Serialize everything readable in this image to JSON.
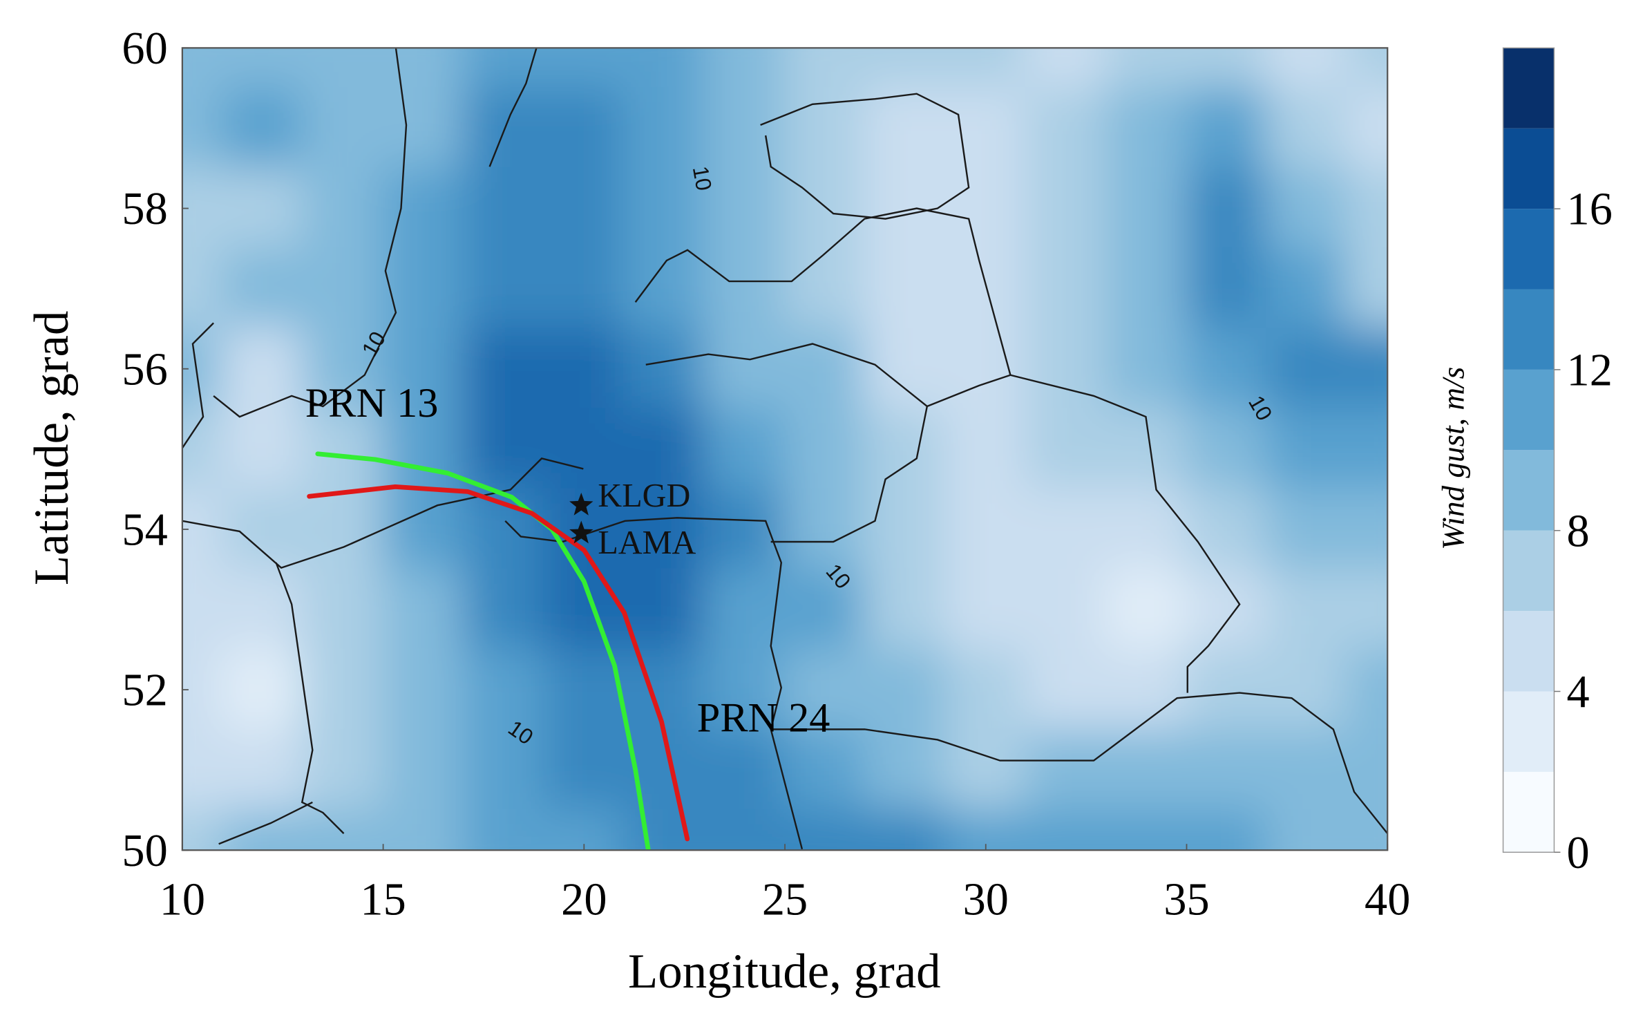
{
  "chart_data": {
    "type": "contour",
    "xlabel": "Longitude, grad",
    "ylabel": "Latitude, grad",
    "xlim": [
      10,
      40
    ],
    "ylim": [
      50,
      60
    ],
    "xticks": [
      10,
      15,
      20,
      25,
      30,
      35,
      40
    ],
    "yticks": [
      50,
      52,
      54,
      56,
      58,
      60
    ],
    "field": {
      "x": [
        10,
        12,
        14,
        16,
        18,
        20,
        22,
        24,
        26,
        28,
        30,
        32,
        34,
        36,
        38,
        40
      ],
      "y": [
        60,
        59,
        58,
        57,
        56,
        55,
        54,
        53,
        52,
        51,
        50
      ],
      "values": [
        [
          8,
          8,
          9,
          8,
          11,
          11,
          11,
          9,
          6,
          7,
          7,
          5,
          7,
          6,
          4,
          7
        ],
        [
          9,
          11,
          9,
          8,
          12,
          12,
          11,
          9,
          7,
          5,
          4,
          6,
          8,
          11,
          7,
          5
        ],
        [
          6,
          7,
          9,
          10,
          13,
          12,
          11,
          9,
          7,
          5,
          4,
          6,
          8,
          12,
          9,
          6
        ],
        [
          7,
          9,
          9,
          11,
          13,
          13,
          11,
          9,
          6,
          4,
          5,
          6,
          8,
          12,
          11,
          7
        ],
        [
          8,
          5,
          8,
          11,
          14,
          14,
          13,
          9,
          8,
          5,
          5,
          7,
          8,
          10,
          13,
          12
        ],
        [
          6,
          5,
          6,
          11,
          14,
          15,
          14,
          11,
          8,
          6,
          5,
          6,
          7,
          9,
          11,
          10
        ],
        [
          5,
          6,
          7,
          11,
          13,
          14,
          14,
          12,
          9,
          6,
          5,
          4,
          5,
          7,
          8,
          8
        ],
        [
          4,
          4,
          6,
          9,
          12,
          14,
          14,
          11,
          10,
          7,
          5,
          4,
          3,
          5,
          6,
          7
        ],
        [
          4,
          3,
          6,
          9,
          11,
          13,
          13,
          11,
          9,
          8,
          6,
          5,
          5,
          6,
          7,
          8
        ],
        [
          5,
          5,
          7,
          9,
          11,
          12,
          12,
          12,
          11,
          9,
          7,
          8,
          8,
          9,
          8,
          8
        ],
        [
          7,
          8,
          9,
          9,
          10,
          11,
          12,
          13,
          13,
          12,
          11,
          10,
          10,
          11,
          9,
          8
        ]
      ]
    },
    "colorbar": {
      "label": "Wind gust, m/s",
      "levels": [
        0,
        2,
        4,
        6,
        8,
        10,
        12,
        14,
        16,
        18,
        20
      ],
      "colors": [
        "#f7fbff",
        "#e1edf8",
        "#cadef0",
        "#abcfe5",
        "#82badb",
        "#59a1cf",
        "#3787c0",
        "#1c6aaf",
        "#0b4d94",
        "#08306b"
      ],
      "ticks": [
        0,
        4,
        8,
        12,
        16
      ]
    },
    "contour_labels": [
      {
        "value": 10,
        "lon": 22.9,
        "lat": 58.37
      },
      {
        "value": 10,
        "lon": 14.8,
        "lat": 56.3
      },
      {
        "value": 10,
        "lon": 36.8,
        "lat": 55.5
      },
      {
        "value": 10,
        "lon": 26.3,
        "lat": 53.4
      },
      {
        "value": 10,
        "lon": 18.4,
        "lat": 51.45
      }
    ],
    "series": [
      {
        "name": "PRN 13",
        "color": "#33ee33",
        "x": [
          13.37,
          14.8,
          16.6,
          18.2,
          19.2,
          20.0,
          20.76,
          21.28,
          21.6
        ],
        "values": [
          54.94,
          54.87,
          54.7,
          54.4,
          54.0,
          53.35,
          52.3,
          51.0,
          50.0
        ]
      },
      {
        "name": "PRN 24",
        "color": "#e01818",
        "x": [
          13.16,
          15.3,
          17.1,
          18.7,
          20.0,
          21.0,
          21.93,
          22.57
        ],
        "values": [
          54.41,
          54.53,
          54.47,
          54.2,
          53.74,
          52.96,
          51.6,
          50.14
        ]
      }
    ],
    "stations": [
      {
        "name": "KLGD",
        "lon": 19.93,
        "lat": 54.3
      },
      {
        "name": "LAMA",
        "lon": 19.93,
        "lat": 53.95
      }
    ]
  }
}
